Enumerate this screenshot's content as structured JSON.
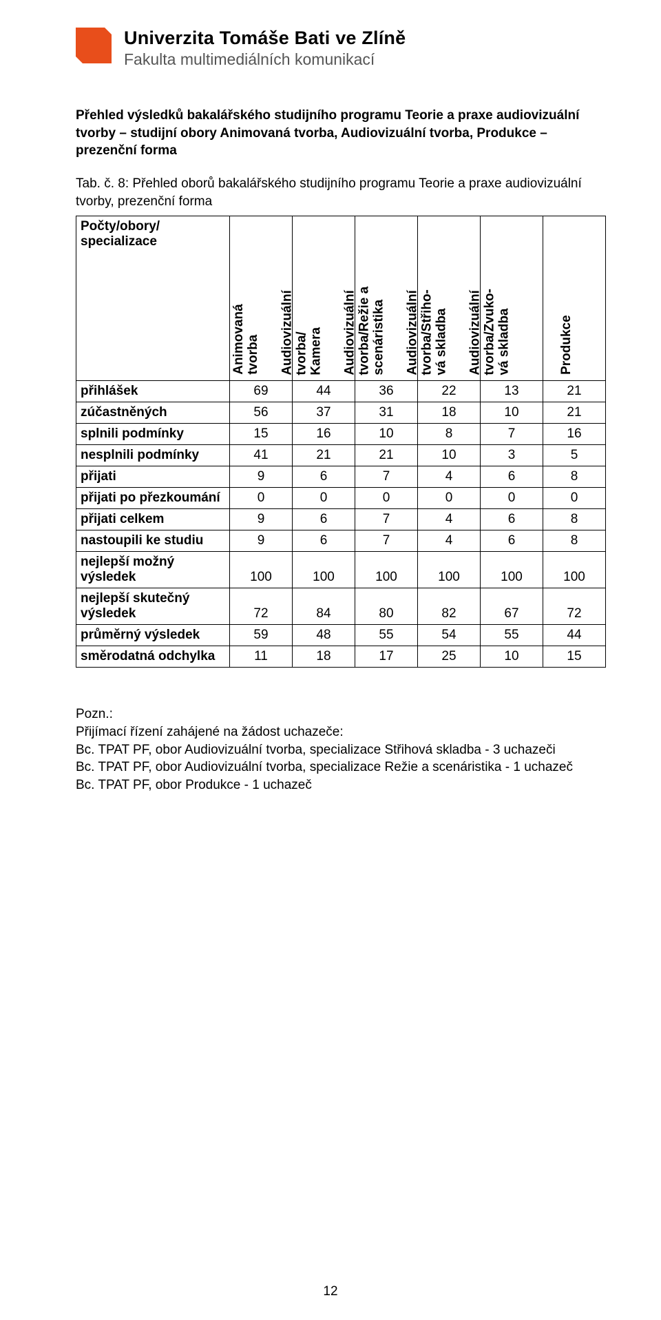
{
  "header": {
    "university": "Univerzita Tomáše Bati ve Zlíně",
    "faculty": "Fakulta multimediálních komunikací",
    "logo_color": "#e84e1b"
  },
  "section_title": "Přehled výsledků bakalářského studijního programu Teorie a praxe audiovizuální tvorby – studijní obory Animovaná tvorba, Audiovizuální tvorba, Produkce – prezenční forma",
  "table_caption": "Tab. č. 8: Přehled oborů bakalářského studijního programu Teorie a praxe audiovizuální tvorby, prezenční forma",
  "table": {
    "corner_label_line1": "Počty/obory/",
    "corner_label_line2": "specializace",
    "columns": [
      {
        "line1": "Animovaná",
        "line2": "tvorba"
      },
      {
        "line1": "Audiovizuální",
        "line2": "tvorba/",
        "line3": "Kamera"
      },
      {
        "line1": "Audiovizuální",
        "line2": "tvorba/Režie a",
        "line3": "scenáristika"
      },
      {
        "line1": "Audiovizuální",
        "line2": "tvorba/Střiho-",
        "line3": "vá skladba"
      },
      {
        "line1": "Audiovizuální",
        "line2": "tvorba/Zvuko-",
        "line3": "vá skladba"
      },
      {
        "line1": "Produkce",
        "line2": ""
      }
    ],
    "rows": [
      {
        "label": "přihlášek",
        "values": [
          69,
          44,
          36,
          22,
          13,
          21
        ]
      },
      {
        "label": "zúčastněných",
        "values": [
          56,
          37,
          31,
          18,
          10,
          21
        ]
      },
      {
        "label": "splnili podmínky",
        "values": [
          15,
          16,
          10,
          8,
          7,
          16
        ]
      },
      {
        "label": "nesplnili podmínky",
        "values": [
          41,
          21,
          21,
          10,
          3,
          5
        ]
      },
      {
        "label": "přijati",
        "values": [
          9,
          6,
          7,
          4,
          6,
          8
        ]
      },
      {
        "label": "přijati po přezkoumání",
        "values": [
          0,
          0,
          0,
          0,
          0,
          0
        ]
      },
      {
        "label": "přijati celkem",
        "values": [
          9,
          6,
          7,
          4,
          6,
          8
        ]
      },
      {
        "label": "nastoupili ke studiu",
        "values": [
          9,
          6,
          7,
          4,
          6,
          8
        ]
      },
      {
        "label": "nejlepší možný výsledek",
        "values": [
          100,
          100,
          100,
          100,
          100,
          100
        ]
      },
      {
        "label": "nejlepší skutečný výsledek",
        "values": [
          72,
          84,
          80,
          82,
          67,
          72
        ]
      },
      {
        "label": "průměrný výsledek",
        "values": [
          59,
          48,
          55,
          54,
          55,
          44
        ]
      },
      {
        "label": "směrodatná odchylka",
        "values": [
          11,
          18,
          17,
          25,
          10,
          15
        ]
      }
    ]
  },
  "notes": {
    "heading": "Pozn.:",
    "line1": "Přijímací řízení zahájené na žádost uchazeče:",
    "line2": "Bc. TPAT PF, obor Audiovizuální tvorba, specializace Střihová skladba - 3 uchazeči",
    "line3": "Bc. TPAT PF, obor Audiovizuální tvorba, specializace Režie a scenáristika - 1 uchazeč",
    "line4": "Bc. TPAT PF, obor Produkce - 1 uchazeč"
  },
  "page_number": "12"
}
